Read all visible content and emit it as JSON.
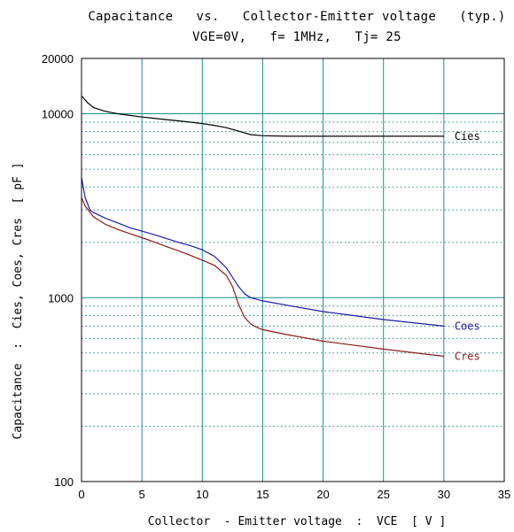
{
  "chart_data": {
    "type": "line",
    "title": "Capacitance   vs.   Collector-Emitter voltage   (typ.)",
    "subtitle": "VGE=0V,   f= 1MHz,   Tj= 25",
    "xlabel": "Collector  - Emitter voltage  :  VCE  [ V ]",
    "ylabel": "Capacitance  :  Cies, Coes, Cres  [ pF ]",
    "xlim": [
      0,
      35
    ],
    "ylim": [
      100,
      20000
    ],
    "yscale": "log",
    "x_ticks": [
      0,
      5,
      10,
      15,
      20,
      25,
      30,
      35
    ],
    "x_tick_labels": [
      "0",
      "5",
      "10",
      "15",
      "20",
      "25",
      "30",
      "35"
    ],
    "y_ticks": [
      100,
      1000,
      10000,
      20000
    ],
    "y_tick_labels": [
      "100",
      "1000",
      "10000",
      "20000"
    ],
    "grid": true,
    "series": [
      {
        "name": "Cies",
        "color": "#000000",
        "x": [
          0,
          0.5,
          1,
          2,
          3,
          4,
          5,
          6,
          7,
          8,
          9,
          10,
          11,
          12,
          13,
          14,
          15,
          17,
          20,
          25,
          30
        ],
        "values": [
          12500,
          11500,
          10800,
          10300,
          10000,
          9800,
          9600,
          9450,
          9300,
          9150,
          9000,
          8850,
          8650,
          8400,
          8050,
          7700,
          7600,
          7550,
          7550,
          7550,
          7550
        ]
      },
      {
        "name": "Coes",
        "color": "#1a1aa6",
        "x": [
          0,
          0.3,
          0.7,
          1,
          2,
          3,
          4,
          5,
          6,
          7,
          8,
          9,
          10,
          11,
          12,
          13,
          13.5,
          14,
          14.5,
          15,
          17,
          20,
          25,
          30
        ],
        "values": [
          4500,
          3500,
          3000,
          2900,
          2700,
          2550,
          2400,
          2300,
          2200,
          2100,
          2000,
          1920,
          1820,
          1680,
          1450,
          1150,
          1050,
          1000,
          980,
          960,
          910,
          840,
          760,
          700
        ]
      },
      {
        "name": "Cres",
        "color": "#8b1a1a",
        "x": [
          0,
          0.3,
          1,
          2,
          3,
          4,
          5,
          6,
          7,
          8,
          9,
          10,
          11,
          12,
          12.5,
          13,
          13.5,
          14,
          14.5,
          15,
          17,
          20,
          25,
          30
        ],
        "values": [
          3500,
          3150,
          2750,
          2500,
          2350,
          2230,
          2120,
          2010,
          1900,
          1800,
          1700,
          1600,
          1500,
          1320,
          1150,
          920,
          780,
          720,
          690,
          670,
          630,
          580,
          525,
          480
        ]
      }
    ]
  }
}
